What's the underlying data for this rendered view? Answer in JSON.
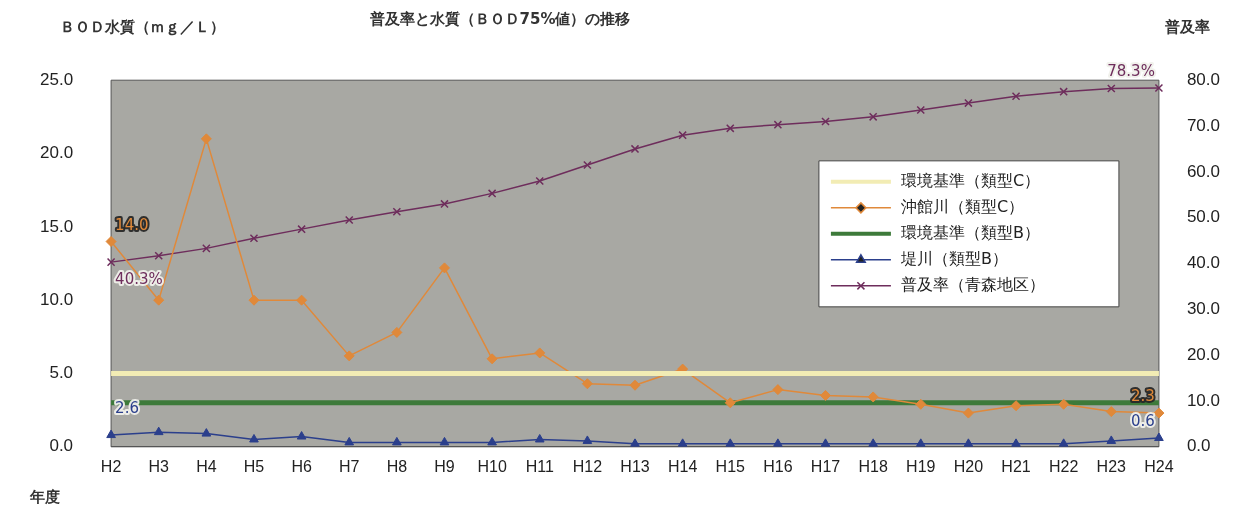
{
  "chart_data": {
    "type": "line",
    "title": "普及率と水質（ＢＯＤ75%値）の推移",
    "xlabel": "年度",
    "ylabel": "ＢＯＤ水質（ｍｇ／Ｌ）",
    "y2label": "普及率",
    "categories": [
      "H2",
      "H3",
      "H4",
      "H5",
      "H6",
      "H7",
      "H8",
      "H9",
      "H10",
      "H11",
      "H12",
      "H13",
      "H14",
      "H15",
      "H16",
      "H17",
      "H18",
      "H19",
      "H20",
      "H21",
      "H22",
      "H23",
      "H24"
    ],
    "series": [
      {
        "name": "環境基準（類型C）",
        "color": "#f2ecb4",
        "marker": "none",
        "values": [
          5,
          5,
          5,
          5,
          5,
          5,
          5,
          5,
          5,
          5,
          5,
          5,
          5,
          5,
          5,
          5,
          5,
          5,
          5,
          5,
          5,
          5,
          5
        ]
      },
      {
        "name": "沖館川（類型C）",
        "color": "#e0893a",
        "marker": "diamond",
        "values": [
          14.0,
          10.0,
          21.0,
          10.0,
          10.0,
          6.2,
          7.8,
          12.2,
          6.0,
          6.4,
          4.3,
          4.2,
          5.3,
          3.0,
          3.9,
          3.5,
          3.4,
          2.9,
          2.3,
          2.8,
          2.9,
          2.4,
          2.3
        ],
        "value_labels": [
          "14.0",
          null,
          null,
          null,
          null,
          null,
          null,
          null,
          null,
          null,
          null,
          null,
          null,
          null,
          null,
          null,
          null,
          null,
          null,
          null,
          null,
          null,
          "2.3"
        ]
      },
      {
        "name": "環境基準（類型B）",
        "color": "#3d7a3a",
        "marker": "none",
        "values": [
          3,
          3,
          3,
          3,
          3,
          3,
          3,
          3,
          3,
          3,
          3,
          3,
          3,
          3,
          3,
          3,
          3,
          3,
          3,
          3,
          3,
          3,
          3
        ]
      },
      {
        "name": "堤川（類型B）",
        "color": "#2b3f8c",
        "marker": "triangle",
        "values": [
          0.8,
          1.0,
          0.9,
          0.5,
          0.7,
          0.3,
          0.3,
          0.3,
          0.3,
          0.5,
          0.4,
          0.2,
          0.2,
          0.2,
          0.2,
          0.2,
          0.2,
          0.2,
          0.2,
          0.2,
          0.2,
          0.4,
          0.6
        ],
        "value_labels": [
          null,
          null,
          null,
          null,
          null,
          null,
          null,
          null,
          null,
          null,
          null,
          null,
          null,
          null,
          null,
          null,
          null,
          null,
          null,
          null,
          null,
          null,
          "0.6"
        ]
      },
      {
        "name": "普及率（青森地区）",
        "color": "#6e2d5c",
        "marker": "cross",
        "axis": "y2",
        "values": [
          40.3,
          41.7,
          43.3,
          45.5,
          47.5,
          49.5,
          51.3,
          53.0,
          55.3,
          58.0,
          61.5,
          65.0,
          68.0,
          69.5,
          70.3,
          71.0,
          72.0,
          73.5,
          75.0,
          76.5,
          77.5,
          78.2,
          78.3
        ],
        "value_labels": [
          "40.3%",
          null,
          null,
          null,
          null,
          null,
          null,
          null,
          null,
          null,
          null,
          null,
          null,
          null,
          null,
          null,
          null,
          null,
          null,
          null,
          null,
          null,
          "78.3%"
        ]
      }
    ],
    "annotations": [
      "2.6"
    ],
    "ylim": [
      0,
      25
    ],
    "yticks": [
      {
        "value": 0,
        "label": "0.0"
      },
      {
        "value": 5,
        "label": "5.0"
      },
      {
        "value": 10,
        "label": "10.0"
      },
      {
        "value": 15,
        "label": "15.0"
      },
      {
        "value": 20,
        "label": "20.0"
      },
      {
        "value": 25,
        "label": "25.0"
      }
    ],
    "y2lim": [
      0,
      80
    ],
    "y2ticks": [
      {
        "value": 0,
        "label": "0.0"
      },
      {
        "value": 10,
        "label": "10.0"
      },
      {
        "value": 20,
        "label": "20.0"
      },
      {
        "value": 30,
        "label": "30.0"
      },
      {
        "value": 40,
        "label": "40.0"
      },
      {
        "value": 50,
        "label": "50.0"
      },
      {
        "value": 60,
        "label": "60.0"
      },
      {
        "value": 70,
        "label": "70.0"
      },
      {
        "value": 80,
        "label": "80.0"
      }
    ],
    "legend": "right"
  }
}
